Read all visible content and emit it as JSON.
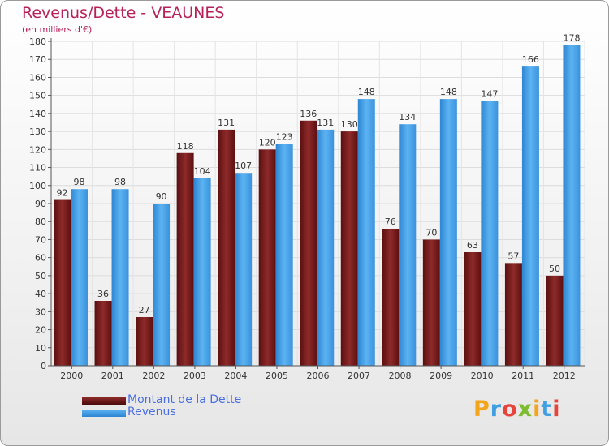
{
  "header": {
    "title": "Revenus/Dette - VEAUNES",
    "subtitle": "(en milliers d'€)"
  },
  "chart_data": {
    "type": "bar",
    "categories": [
      "2000",
      "2001",
      "2002",
      "2003",
      "2004",
      "2005",
      "2006",
      "2007",
      "2008",
      "2009",
      "2010",
      "2011",
      "2012"
    ],
    "series": [
      {
        "name": "Montant de la Dette",
        "color": "#7a1a1a",
        "values": [
          92,
          36,
          27,
          118,
          131,
          120,
          136,
          130,
          76,
          70,
          63,
          57,
          50
        ]
      },
      {
        "name": "Revenus",
        "color": "#3d9ae3",
        "values": [
          98,
          98,
          90,
          104,
          107,
          123,
          131,
          148,
          134,
          148,
          147,
          166,
          178
        ]
      }
    ],
    "ylim": [
      0,
      180
    ],
    "ytick_step": 10,
    "grid": true,
    "legend": "bottom-left"
  },
  "logo": {
    "text": "Proxiti"
  }
}
